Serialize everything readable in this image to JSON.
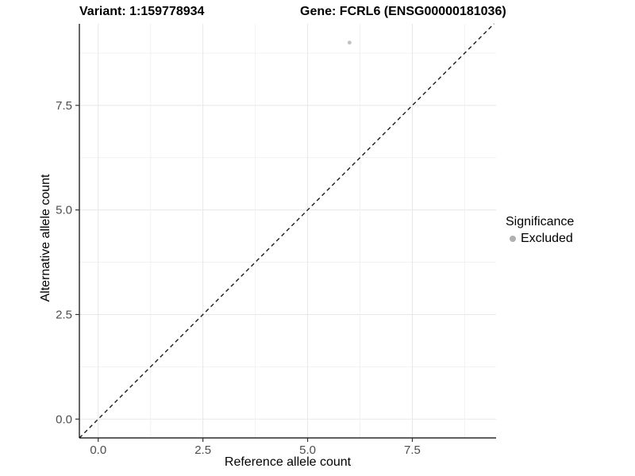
{
  "titles": {
    "variant": "Variant: 1:159778934",
    "gene": "Gene: FCRL6 (ENSG00000181036)"
  },
  "chart_data": {
    "type": "scatter",
    "title": "Variant: 1:159778934    Gene: FCRL6 (ENSG00000181036)",
    "xlabel": "Reference allele count",
    "ylabel": "Alternative allele count",
    "x_ticks": [
      0.0,
      2.5,
      5.0,
      7.5
    ],
    "y_ticks": [
      0.0,
      2.5,
      5.0,
      7.5
    ],
    "x_tick_labels": [
      "0.0",
      "2.5",
      "5.0",
      "7.5"
    ],
    "y_tick_labels": [
      "0.0",
      "2.5",
      "5.0",
      "7.5"
    ],
    "xlim": [
      -0.45,
      9.5
    ],
    "ylim": [
      -0.45,
      9.45
    ],
    "grid": {
      "minor_step": 1.25,
      "major_color": "#e7e7e7",
      "minor_color": "#f2f2f2"
    },
    "reference_line": {
      "type": "identity",
      "slope": 1,
      "intercept": 0,
      "style": "dashed",
      "color": "#1a1a1a"
    },
    "series": [
      {
        "name": "Excluded",
        "color": "#c3c3c3",
        "points": [
          {
            "x": 6,
            "y": 9
          }
        ]
      }
    ],
    "legend": {
      "title": "Significance",
      "position": "right",
      "entries": [
        {
          "label": "Excluded",
          "color": "#b0b0b0"
        }
      ]
    },
    "axis_color": "#000000",
    "tick_color": "#333333",
    "tick_label_color": "#4d4d4d"
  }
}
